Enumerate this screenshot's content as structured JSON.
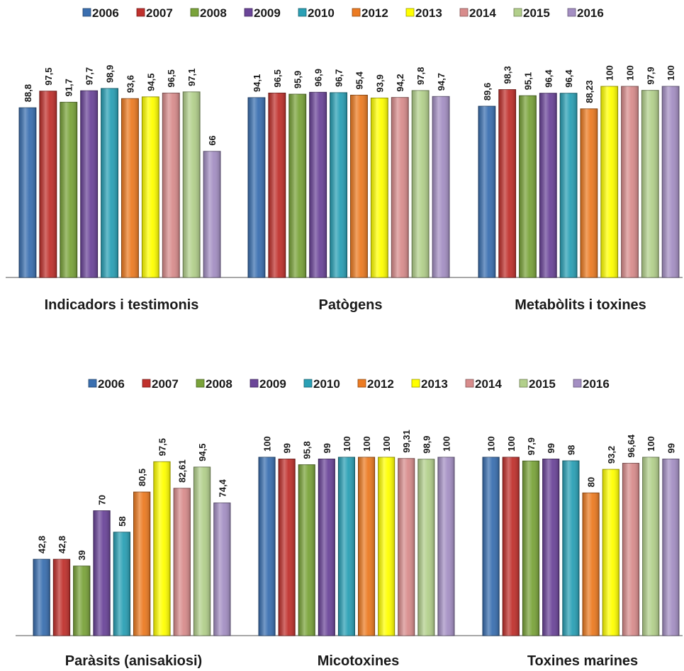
{
  "chart_data": [
    {
      "type": "bar",
      "categories": [
        "Indicadors i testimonis",
        "Patògens",
        "Metabòlits i toxines"
      ],
      "series": [
        {
          "name": "2006",
          "color": "#3a6fb0",
          "values": [
            88.8,
            94.1,
            89.6
          ],
          "labels": [
            "88,8",
            "94,1",
            "89,6"
          ]
        },
        {
          "name": "2007",
          "color": "#c0312d",
          "values": [
            97.5,
            96.5,
            98.3
          ],
          "labels": [
            "97,5",
            "96,5",
            "98,3"
          ]
        },
        {
          "name": "2008",
          "color": "#7aa33a",
          "values": [
            91.7,
            95.9,
            95.1
          ],
          "labels": [
            "91,7",
            "95,9",
            "95,1"
          ]
        },
        {
          "name": "2009",
          "color": "#6b4599",
          "values": [
            97.7,
            96.9,
            96.4
          ],
          "labels": [
            "97,7",
            "96,9",
            "96,4"
          ]
        },
        {
          "name": "2010",
          "color": "#2aa0b5",
          "values": [
            98.9,
            96.7,
            96.4
          ],
          "labels": [
            "98,9",
            "96,7",
            "96,4"
          ]
        },
        {
          "name": "2012",
          "color": "#ec7b22",
          "values": [
            93.6,
            95.4,
            88.23
          ],
          "labels": [
            "93,6",
            "95,4",
            "88,23"
          ]
        },
        {
          "name": "2013",
          "color": "#ffff00",
          "values": [
            94.5,
            93.9,
            100
          ],
          "labels": [
            "94,5",
            "93,9",
            "100"
          ]
        },
        {
          "name": "2014",
          "color": "#d88c8c",
          "values": [
            96.5,
            94.2,
            100
          ],
          "labels": [
            "96,5",
            "94,2",
            "100"
          ]
        },
        {
          "name": "2015",
          "color": "#b2cf8b",
          "values": [
            97.1,
            97.8,
            97.9
          ],
          "labels": [
            "97,1",
            "97,8",
            "97,9"
          ]
        },
        {
          "name": "2016",
          "color": "#a48fc3",
          "values": [
            66,
            94.7,
            100
          ],
          "labels": [
            "66",
            "94,7",
            "100"
          ]
        }
      ],
      "ylim": [
        0,
        100
      ],
      "legend": "top",
      "grid": false
    },
    {
      "type": "bar",
      "categories": [
        "Paràsits (anisakiosi)",
        "Micotoxines",
        "Toxines marines"
      ],
      "series": [
        {
          "name": "2006",
          "color": "#3a6fb0",
          "values": [
            42.8,
            100,
            100
          ],
          "labels": [
            "42,8",
            "100",
            "100"
          ]
        },
        {
          "name": "2007",
          "color": "#c0312d",
          "values": [
            42.8,
            99,
            100
          ],
          "labels": [
            "42,8",
            "99",
            "100"
          ]
        },
        {
          "name": "2008",
          "color": "#7aa33a",
          "values": [
            39,
            95.8,
            97.9
          ],
          "labels": [
            "39",
            "95,8",
            "97,9"
          ]
        },
        {
          "name": "2009",
          "color": "#6b4599",
          "values": [
            70,
            99,
            99
          ],
          "labels": [
            "70",
            "99",
            "99"
          ]
        },
        {
          "name": "2010",
          "color": "#2aa0b5",
          "values": [
            58,
            100,
            98
          ],
          "labels": [
            "58",
            "100",
            "98"
          ]
        },
        {
          "name": "2012",
          "color": "#ec7b22",
          "values": [
            80.5,
            100,
            80
          ],
          "labels": [
            "80,5",
            "100",
            "80"
          ]
        },
        {
          "name": "2013",
          "color": "#ffff00",
          "values": [
            97.5,
            100,
            93.2
          ],
          "labels": [
            "97,5",
            "100",
            "93,2"
          ]
        },
        {
          "name": "2014",
          "color": "#d88c8c",
          "values": [
            82.61,
            99.31,
            96.64
          ],
          "labels": [
            "82,61",
            "99,31",
            "96,64"
          ]
        },
        {
          "name": "2015",
          "color": "#b2cf8b",
          "values": [
            94.5,
            98.9,
            100
          ],
          "labels": [
            "94,5",
            "98,9",
            "100"
          ]
        },
        {
          "name": "2016",
          "color": "#a48fc3",
          "values": [
            74.4,
            100,
            99
          ],
          "labels": [
            "74,4",
            "100",
            "99"
          ]
        }
      ],
      "ylim": [
        0,
        100
      ],
      "legend": "top",
      "grid": false
    }
  ]
}
